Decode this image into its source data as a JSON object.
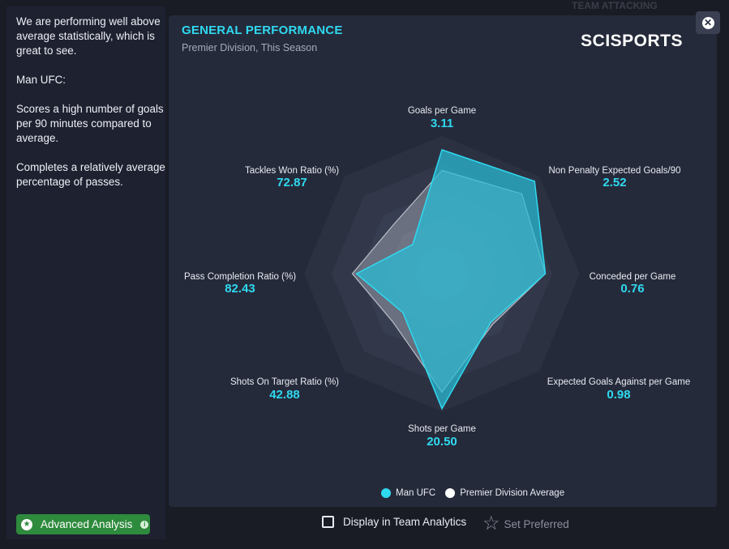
{
  "summary": {
    "p1": "We are performing well above average statistically, which is great to see.",
    "p2": "Man UFC:",
    "p3": "Scores a high number of goals per 90 minutes compared to average.",
    "p4": "Completes a relatively average percentage of passes."
  },
  "advanced_analysis": "Advanced Analysis",
  "card": {
    "title": "GENERAL PERFORMANCE",
    "subtitle": "Premier Division, This Season",
    "logo": "SCISPORTS"
  },
  "tab_ghost": "TEAM ATTACKING",
  "chart_data": {
    "type": "radar",
    "axes": [
      {
        "label": "Goals per Game",
        "value": "3.11"
      },
      {
        "label": "Non Penalty Expected Goals/90",
        "value": "2.52"
      },
      {
        "label": "Conceded per Game",
        "value": "0.76"
      },
      {
        "label": "Expected Goals Against per Game",
        "value": "0.98"
      },
      {
        "label": "Shots per Game",
        "value": "20.50"
      },
      {
        "label": "Shots On Target Ratio (%)",
        "value": "42.88"
      },
      {
        "label": "Pass Completion Ratio (%)",
        "value": "82.43"
      },
      {
        "label": "Tackles Won Ratio (%)",
        "value": "72.87"
      }
    ],
    "series": [
      {
        "name": "Man UFC",
        "color": "#2ec4dc",
        "normalized": [
          0.9,
          0.95,
          0.75,
          0.5,
          0.98,
          0.4,
          0.62,
          0.3
        ]
      },
      {
        "name": "Premier Division Average",
        "color": "#ffffff",
        "normalized": [
          0.75,
          0.82,
          0.75,
          0.52,
          0.86,
          0.5,
          0.65,
          0.5
        ]
      }
    ]
  },
  "legend": {
    "team": "Man UFC",
    "avg": "Premier Division Average"
  },
  "footer": {
    "display_in_team_analytics": "Display in Team Analytics",
    "set_preferred": "Set Preferred"
  }
}
